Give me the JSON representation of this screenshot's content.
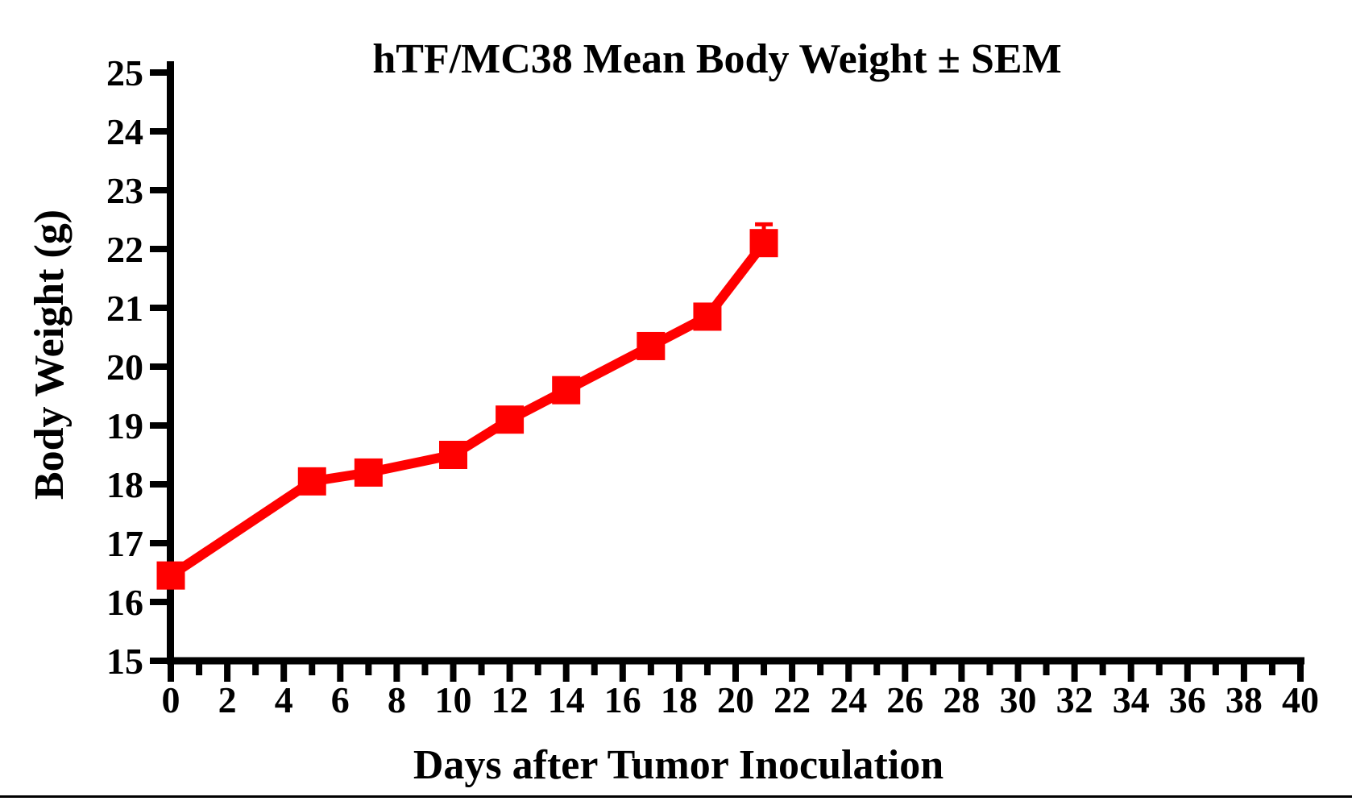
{
  "page": {
    "background": "#ffffff"
  },
  "chart_data": {
    "type": "line",
    "title": "hTF/MC38 Mean Body Weight ± SEM",
    "xlabel": "Days after Tumor Inoculation",
    "ylabel": "Body Weight (g)",
    "xlim": [
      0,
      40
    ],
    "ylim": [
      15,
      25
    ],
    "x_tick_major_step": 2,
    "x_tick_minor_step": 1,
    "y_tick_step": 1,
    "x_tick_labels": [
      "0",
      "2",
      "4",
      "6",
      "8",
      "10",
      "12",
      "14",
      "16",
      "18",
      "20",
      "22",
      "24",
      "26",
      "28",
      "30",
      "32",
      "34",
      "36",
      "38",
      "40"
    ],
    "y_tick_labels": [
      "15",
      "16",
      "17",
      "18",
      "19",
      "20",
      "21",
      "22",
      "23",
      "24",
      "25"
    ],
    "grid": false,
    "legend_position": "none",
    "axis_color": "#000000",
    "series": [
      {
        "name": "hTF/MC38 mean body weight",
        "color": "#ff0000",
        "marker": "square",
        "x": [
          0,
          5,
          7,
          10,
          12,
          14,
          17,
          19,
          21
        ],
        "y": [
          16.45,
          18.05,
          18.2,
          18.5,
          19.1,
          19.6,
          20.35,
          20.85,
          22.1
        ],
        "sem_upper": [
          0,
          0,
          0,
          0,
          0,
          0,
          0,
          0,
          0.32
        ]
      }
    ]
  }
}
